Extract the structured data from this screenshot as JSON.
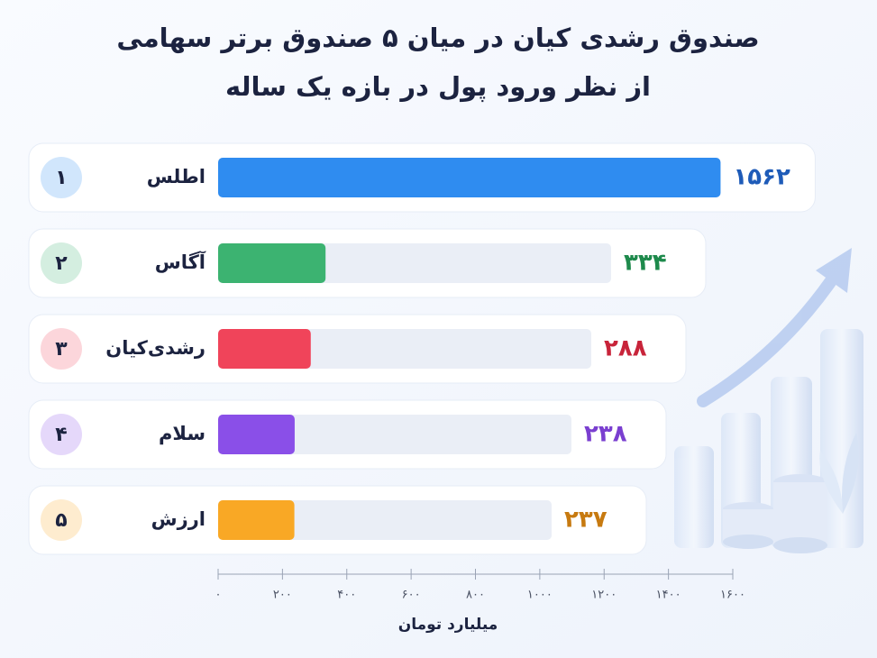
{
  "chart_data": {
    "type": "bar",
    "orientation": "horizontal",
    "title": "صندوق رشدی کیان در میان ۵ صندوق برتر سهامی",
    "subtitle": "از نظر ورود پول در بازه یک ساله",
    "ranks": [
      "۱",
      "۲",
      "۳",
      "۴",
      "۵"
    ],
    "categories": [
      "اطلس",
      "آگاس",
      "رشدی‌کیان",
      "سلام",
      "ارزش"
    ],
    "values": [
      1562,
      334,
      288,
      238,
      237
    ],
    "value_labels": [
      "۱۵۶۲",
      "۳۳۴",
      "۲۸۸",
      "۲۳۸",
      "۲۳۷"
    ],
    "colors": [
      "#2f8cf0",
      "#3cb371",
      "#f0445a",
      "#8a4fe8",
      "#f9a825"
    ],
    "label_colors": [
      "#1e5bb8",
      "#1e8a4c",
      "#c8243a",
      "#7a3fd0",
      "#c77a10"
    ],
    "xlim": [
      0,
      1600
    ],
    "xticks": [
      {
        "value": 0,
        "label": "۰"
      },
      {
        "value": 200,
        "label": "۲۰۰"
      },
      {
        "value": 400,
        "label": "۴۰۰"
      },
      {
        "value": 600,
        "label": "۶۰۰"
      },
      {
        "value": 800,
        "label": "۸۰۰"
      },
      {
        "value": 1000,
        "label": "۱۰۰۰"
      },
      {
        "value": 1200,
        "label": "۱۲۰۰"
      },
      {
        "value": 1400,
        "label": "۱۴۰۰"
      },
      {
        "value": 1600,
        "label": "۱۶۰۰"
      }
    ],
    "xlabel": "میلیارد تومان"
  }
}
